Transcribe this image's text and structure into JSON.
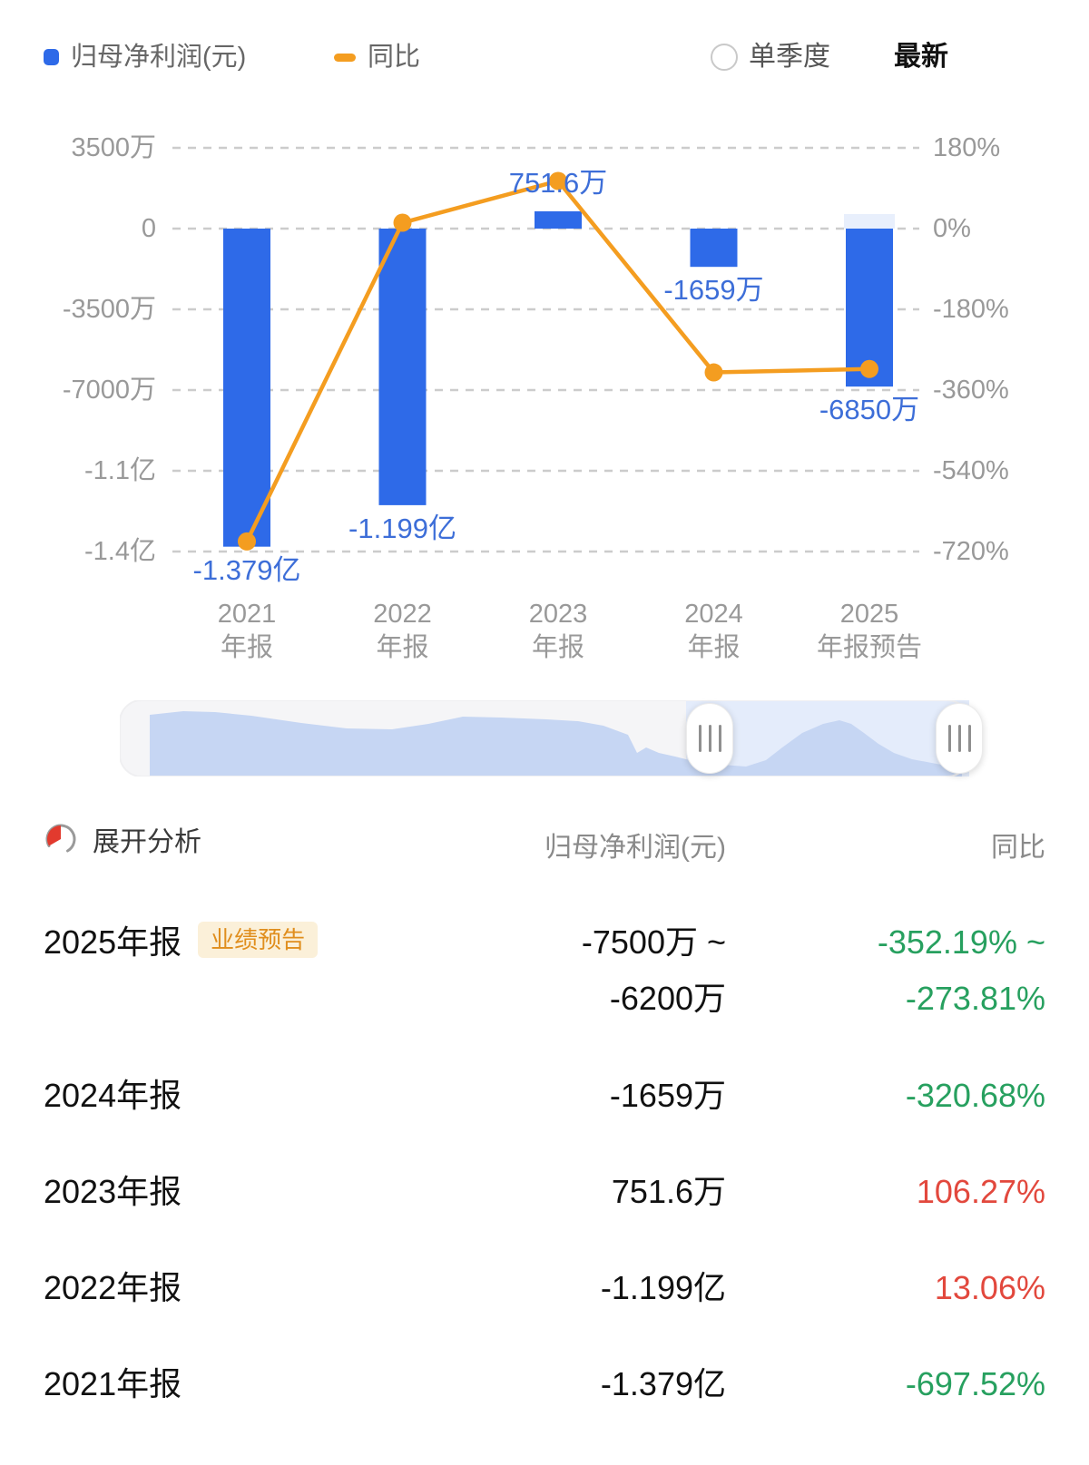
{
  "legend": {
    "profit_label": "归母净利润(元)",
    "yoy_label": "同比"
  },
  "controls": {
    "quarterly_label": "单季度",
    "latest_label": "最新"
  },
  "chart_data": {
    "type": "bar+line",
    "categories": [
      {
        "line1": "2021",
        "line2": "年报"
      },
      {
        "line1": "2022",
        "line2": "年报"
      },
      {
        "line1": "2023",
        "line2": "年报"
      },
      {
        "line1": "2024",
        "line2": "年报"
      },
      {
        "line1": "2025",
        "line2": "年报预告"
      }
    ],
    "series": [
      {
        "name": "归母净利润(元)",
        "type": "bar",
        "unit": "万元",
        "values": [
          -13790,
          -11990,
          751.6,
          -1659,
          -6850
        ],
        "labels": [
          "-1.379亿",
          "-1.199亿",
          "751.6万",
          "-1659万",
          "-6850万"
        ],
        "color": "#2E6AE8"
      },
      {
        "name": "同比",
        "type": "line",
        "unit": "%",
        "values": [
          -697.52,
          13.06,
          106.27,
          -320.68,
          -313.0
        ],
        "color": "#F49D20"
      }
    ],
    "left_axis": {
      "tick_values_wan": [
        3500,
        0,
        -3500,
        -7000,
        -10500,
        -14000
      ],
      "tick_labels": [
        "3500万",
        "0",
        "-3500万",
        "-7000万",
        "-1.1亿",
        "-1.4亿"
      ]
    },
    "right_axis": {
      "tick_values": [
        180,
        0,
        -180,
        -360,
        -540,
        -720
      ],
      "tick_labels": [
        "180%",
        "0%",
        "-180%",
        "-360%",
        "-540%",
        "-720%"
      ]
    },
    "grid": "dashed",
    "legend_position": "top"
  },
  "table": {
    "header": {
      "expand_label": "展开分析",
      "col_profit": "归母净利润(元)",
      "col_yoy": "同比"
    },
    "rows": [
      {
        "period": "2025年报",
        "badge": "业绩预告",
        "profit_line1": "-7500万 ~",
        "profit_line2": "-6200万",
        "yoy_line1": "-352.19% ~",
        "yoy_line2": "-273.81%",
        "yoy_color": "green"
      },
      {
        "period": "2024年报",
        "profit": "-1659万",
        "yoy": "-320.68%",
        "yoy_color": "green"
      },
      {
        "period": "2023年报",
        "profit": "751.6万",
        "yoy": "106.27%",
        "yoy_color": "red"
      },
      {
        "period": "2022年报",
        "profit": "-1.199亿",
        "yoy": "13.06%",
        "yoy_color": "red"
      },
      {
        "period": "2021年报",
        "profit": "-1.379亿",
        "yoy": "-697.52%",
        "yoy_color": "green"
      }
    ]
  },
  "colors": {
    "bar_blue": "#2E6AE8",
    "line_orange": "#F49D20",
    "label_blue": "#3D6ED8",
    "up_red": "#E2483D",
    "down_green": "#27A05F",
    "badge_bg": "#FBF0D9",
    "badge_text": "#E08E1D"
  }
}
